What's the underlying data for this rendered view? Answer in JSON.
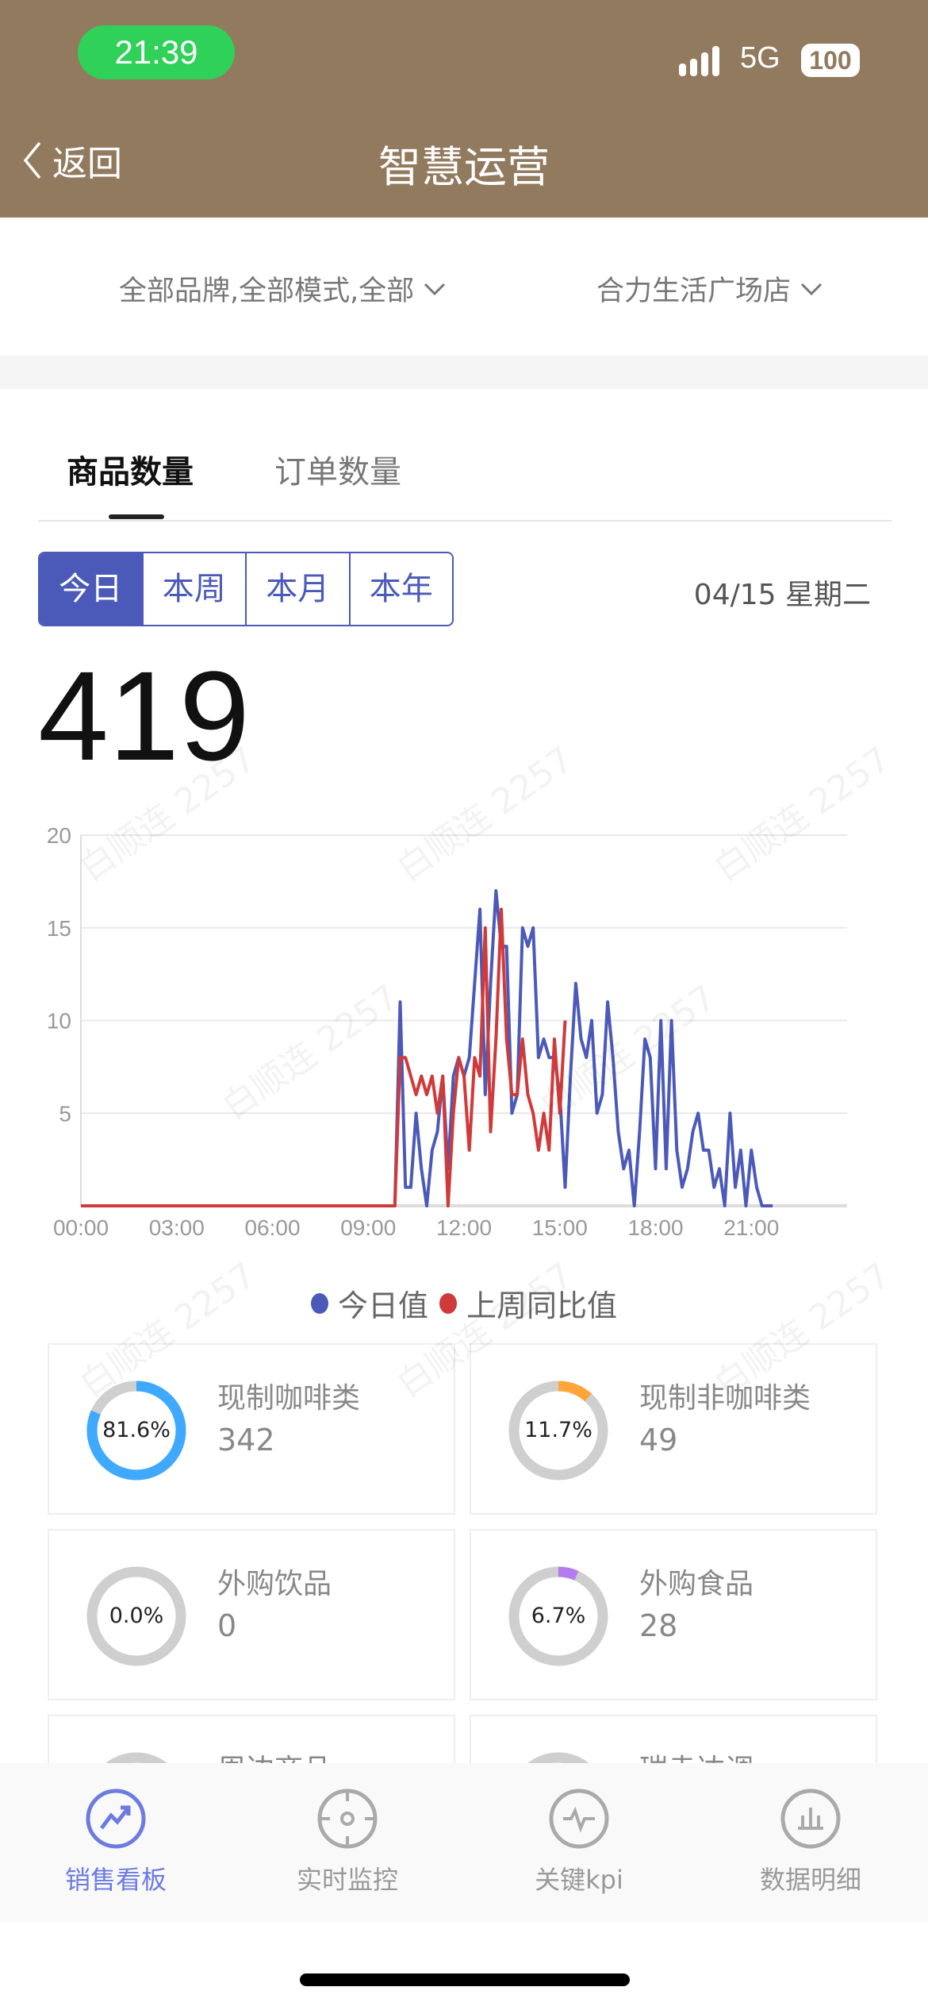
{
  "status_bar": {
    "time": "21:39",
    "network": "5G",
    "battery": "100"
  },
  "nav": {
    "back_label": "返回",
    "title": "智慧运营"
  },
  "filters": {
    "brand_mode": "全部品牌,全部模式,全部",
    "store": "合力生活广场店"
  },
  "tabs": [
    {
      "label": "商品数量",
      "active": true
    },
    {
      "label": "订单数量",
      "active": false
    }
  ],
  "periods": [
    {
      "label": "今日",
      "active": true
    },
    {
      "label": "本周",
      "active": false
    },
    {
      "label": "本月",
      "active": false
    },
    {
      "label": "本年",
      "active": false
    }
  ],
  "date": "04/15 星期二",
  "total": "419",
  "watermark": "白顺连 2257",
  "chart_data": {
    "type": "line",
    "xlabel": "",
    "ylabel": "",
    "x_ticks": [
      "00:00",
      "03:00",
      "06:00",
      "09:00",
      "12:00",
      "15:00",
      "18:00",
      "21:00"
    ],
    "y_ticks": [
      "5",
      "10",
      "15",
      "20"
    ],
    "ylim": [
      0,
      20
    ],
    "xlim": [
      "00:00",
      "24:00"
    ],
    "grid": true,
    "legend_position": "bottom",
    "series": [
      {
        "name": "今日值",
        "color": "#4b5ab8",
        "points": [
          [
            "00:00",
            0
          ],
          [
            "09:50",
            0
          ],
          [
            "10:00",
            11
          ],
          [
            "10:10",
            1
          ],
          [
            "10:20",
            1
          ],
          [
            "10:30",
            5
          ],
          [
            "10:40",
            2
          ],
          [
            "10:50",
            0
          ],
          [
            "11:00",
            3
          ],
          [
            "11:10",
            4
          ],
          [
            "11:20",
            7
          ],
          [
            "11:30",
            2
          ],
          [
            "11:40",
            7
          ],
          [
            "11:50",
            8
          ],
          [
            "12:00",
            7
          ],
          [
            "12:10",
            8
          ],
          [
            "12:20",
            12
          ],
          [
            "12:30",
            16
          ],
          [
            "12:40",
            6
          ],
          [
            "12:50",
            12
          ],
          [
            "13:00",
            17
          ],
          [
            "13:10",
            14
          ],
          [
            "13:20",
            14
          ],
          [
            "13:30",
            5
          ],
          [
            "13:40",
            6
          ],
          [
            "13:50",
            15
          ],
          [
            "14:00",
            14
          ],
          [
            "14:10",
            15
          ],
          [
            "14:20",
            8
          ],
          [
            "14:30",
            9
          ],
          [
            "14:40",
            8
          ],
          [
            "14:50",
            8
          ],
          [
            "15:00",
            6
          ],
          [
            "15:10",
            1
          ],
          [
            "15:20",
            7
          ],
          [
            "15:30",
            12
          ],
          [
            "15:40",
            9
          ],
          [
            "15:50",
            8
          ],
          [
            "16:00",
            10
          ],
          [
            "16:10",
            5
          ],
          [
            "16:20",
            6
          ],
          [
            "16:30",
            11
          ],
          [
            "16:40",
            8
          ],
          [
            "16:50",
            4
          ],
          [
            "17:00",
            2
          ],
          [
            "17:10",
            3
          ],
          [
            "17:20",
            0
          ],
          [
            "17:30",
            4
          ],
          [
            "17:40",
            9
          ],
          [
            "17:50",
            8
          ],
          [
            "18:00",
            2
          ],
          [
            "18:10",
            10
          ],
          [
            "18:20",
            2
          ],
          [
            "18:30",
            10
          ],
          [
            "18:40",
            3
          ],
          [
            "18:50",
            1
          ],
          [
            "19:00",
            2
          ],
          [
            "19:10",
            4
          ],
          [
            "19:20",
            5
          ],
          [
            "19:30",
            3
          ],
          [
            "19:40",
            3
          ],
          [
            "19:50",
            1
          ],
          [
            "20:00",
            2
          ],
          [
            "20:10",
            0
          ],
          [
            "20:20",
            5
          ],
          [
            "20:30",
            1
          ],
          [
            "20:40",
            3
          ],
          [
            "20:50",
            0
          ],
          [
            "21:00",
            3
          ],
          [
            "21:10",
            1
          ],
          [
            "21:20",
            0
          ],
          [
            "21:30",
            0
          ],
          [
            "21:40",
            0
          ]
        ]
      },
      {
        "name": "上周同比值",
        "color": "#d03a3a",
        "points": [
          [
            "00:00",
            0
          ],
          [
            "09:50",
            0
          ],
          [
            "10:00",
            8
          ],
          [
            "10:10",
            8
          ],
          [
            "10:20",
            7
          ],
          [
            "10:30",
            6
          ],
          [
            "10:40",
            7
          ],
          [
            "10:50",
            6
          ],
          [
            "11:00",
            7
          ],
          [
            "11:10",
            5
          ],
          [
            "11:20",
            7
          ],
          [
            "11:30",
            0
          ],
          [
            "11:40",
            5
          ],
          [
            "11:50",
            8
          ],
          [
            "12:00",
            7
          ],
          [
            "12:10",
            3
          ],
          [
            "12:20",
            8
          ],
          [
            "12:30",
            7
          ],
          [
            "12:40",
            15
          ],
          [
            "12:50",
            4
          ],
          [
            "13:00",
            9
          ],
          [
            "13:10",
            16
          ],
          [
            "13:20",
            9
          ],
          [
            "13:30",
            6
          ],
          [
            "13:40",
            6
          ],
          [
            "13:50",
            9
          ],
          [
            "14:00",
            6
          ],
          [
            "14:10",
            5
          ],
          [
            "14:20",
            3
          ],
          [
            "14:30",
            5
          ],
          [
            "14:40",
            3
          ],
          [
            "14:50",
            9
          ],
          [
            "15:00",
            5
          ],
          [
            "15:10",
            10
          ]
        ]
      }
    ]
  },
  "categories": [
    {
      "name": "现制咖啡类",
      "value": "342",
      "percent": "81.6%",
      "ratio": 0.816,
      "color": "#3fa9ff"
    },
    {
      "name": "现制非咖啡类",
      "value": "49",
      "percent": "11.7%",
      "ratio": 0.117,
      "color": "#ffa53a"
    },
    {
      "name": "外购饮品",
      "value": "0",
      "percent": "0.0%",
      "ratio": 0,
      "color": "#cccccc"
    },
    {
      "name": "外购食品",
      "value": "28",
      "percent": "6.7%",
      "ratio": 0.067,
      "color": "#b57cf0"
    },
    {
      "name": "周边商品",
      "value": "",
      "percent": "",
      "ratio": 0,
      "color": "#cccccc"
    },
    {
      "name": "瑞幸达调",
      "value": "",
      "percent": "",
      "ratio": 0,
      "color": "#cccccc"
    }
  ],
  "tabbar": [
    {
      "label": "销售看板",
      "icon": "trend-up-icon",
      "active": true
    },
    {
      "label": "实时监控",
      "icon": "crosshair-icon",
      "active": false
    },
    {
      "label": "关键kpi",
      "icon": "pulse-icon",
      "active": false
    },
    {
      "label": "数据明细",
      "icon": "bar-chart-icon",
      "active": false
    }
  ]
}
